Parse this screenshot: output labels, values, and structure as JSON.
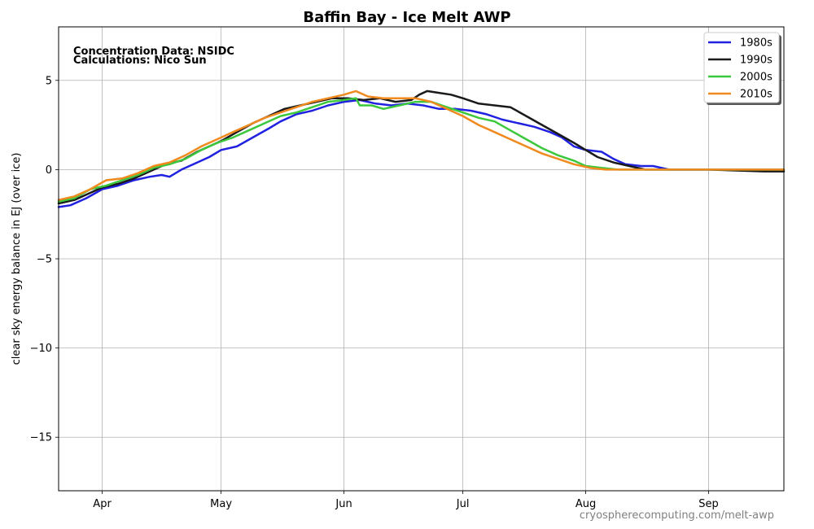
{
  "chart_data": {
    "type": "line",
    "title": "Baffin Bay - Ice Melt AWP",
    "xlabel": "",
    "ylabel": "clear sky energy balance in EJ (over ice)",
    "xlim": [
      "Mar 21",
      "Sep 20"
    ],
    "ylim": [
      -18,
      8
    ],
    "x_ticks": [
      {
        "label": "Apr",
        "date": "Apr 1"
      },
      {
        "label": "May",
        "date": "May 1"
      },
      {
        "label": "Jun",
        "date": "Jun 1"
      },
      {
        "label": "Jul",
        "date": "Jul 1"
      },
      {
        "label": "Aug",
        "date": "Aug 1"
      },
      {
        "label": "Sep",
        "date": "Sep 1"
      }
    ],
    "y_ticks": [
      5,
      0,
      -5,
      -10,
      -15
    ],
    "y_tick_labels": [
      "5",
      "0",
      "−5",
      "−10",
      "−15"
    ],
    "grid": true,
    "legend_position": "top-right",
    "annotations": [
      "Concentration Data: NSIDC",
      "Calculations: Nico Sun"
    ],
    "footer": "cryospherecomputing.com/melt-awp",
    "series": [
      {
        "name": "1980s",
        "color": "#2121e0",
        "points": [
          [
            "Mar 21",
            -2.1
          ],
          [
            "Mar 24",
            -2.0
          ],
          [
            "Mar 28",
            -1.6
          ],
          [
            "Apr 1",
            -1.1
          ],
          [
            "Apr 5",
            -0.9
          ],
          [
            "Apr 9",
            -0.6
          ],
          [
            "Apr 13",
            -0.4
          ],
          [
            "Apr 16",
            -0.3
          ],
          [
            "Apr 18",
            -0.4
          ],
          [
            "Apr 21",
            0.0
          ],
          [
            "Apr 25",
            0.4
          ],
          [
            "Apr 28",
            0.7
          ],
          [
            "May 1",
            1.1
          ],
          [
            "May 5",
            1.3
          ],
          [
            "May 9",
            1.8
          ],
          [
            "May 13",
            2.3
          ],
          [
            "May 16",
            2.7
          ],
          [
            "May 20",
            3.1
          ],
          [
            "May 24",
            3.3
          ],
          [
            "May 28",
            3.6
          ],
          [
            "Jun 1",
            3.8
          ],
          [
            "Jun 5",
            3.9
          ],
          [
            "Jun 9",
            3.7
          ],
          [
            "Jun 13",
            3.6
          ],
          [
            "Jun 17",
            3.7
          ],
          [
            "Jun 21",
            3.6
          ],
          [
            "Jun 25",
            3.4
          ],
          [
            "Jun 29",
            3.4
          ],
          [
            "Jul 3",
            3.3
          ],
          [
            "Jul 7",
            3.1
          ],
          [
            "Jul 11",
            2.8
          ],
          [
            "Jul 15",
            2.6
          ],
          [
            "Jul 19",
            2.4
          ],
          [
            "Jul 23",
            2.1
          ],
          [
            "Jul 26",
            1.8
          ],
          [
            "Jul 29",
            1.3
          ],
          [
            "Aug 1",
            1.1
          ],
          [
            "Aug 5",
            1.0
          ],
          [
            "Aug 8",
            0.6
          ],
          [
            "Aug 11",
            0.3
          ],
          [
            "Aug 15",
            0.2
          ],
          [
            "Aug 18",
            0.2
          ],
          [
            "Aug 22",
            0.0
          ],
          [
            "Aug 26",
            0.0
          ],
          [
            "Sep 1",
            0.0
          ],
          [
            "Sep 10",
            0.0
          ],
          [
            "Sep 20",
            0.0
          ]
        ]
      },
      {
        "name": "1990s",
        "color": "#1a1a1a",
        "points": [
          [
            "Mar 21",
            -1.9
          ],
          [
            "Mar 25",
            -1.7
          ],
          [
            "Mar 28",
            -1.4
          ],
          [
            "Apr 1",
            -1.0
          ],
          [
            "Apr 5",
            -0.8
          ],
          [
            "Apr 9",
            -0.5
          ],
          [
            "Apr 13",
            -0.1
          ],
          [
            "Apr 17",
            0.3
          ],
          [
            "Apr 21",
            0.5
          ],
          [
            "Apr 25",
            1.0
          ],
          [
            "Apr 28",
            1.3
          ],
          [
            "May 1",
            1.6
          ],
          [
            "May 5",
            2.1
          ],
          [
            "May 9",
            2.6
          ],
          [
            "May 13",
            3.0
          ],
          [
            "May 17",
            3.4
          ],
          [
            "May 21",
            3.6
          ],
          [
            "May 25",
            3.8
          ],
          [
            "May 29",
            4.0
          ],
          [
            "Jun 2",
            4.0
          ],
          [
            "Jun 6",
            3.9
          ],
          [
            "Jun 10",
            4.0
          ],
          [
            "Jun 14",
            3.8
          ],
          [
            "Jun 18",
            3.9
          ],
          [
            "Jun 20",
            4.2
          ],
          [
            "Jun 22",
            4.4
          ],
          [
            "Jun 25",
            4.3
          ],
          [
            "Jun 28",
            4.2
          ],
          [
            "Jul 1",
            4.0
          ],
          [
            "Jul 5",
            3.7
          ],
          [
            "Jul 9",
            3.6
          ],
          [
            "Jul 13",
            3.5
          ],
          [
            "Jul 17",
            3.0
          ],
          [
            "Jul 21",
            2.5
          ],
          [
            "Jul 25",
            2.0
          ],
          [
            "Jul 29",
            1.5
          ],
          [
            "Aug 1",
            1.1
          ],
          [
            "Aug 4",
            0.7
          ],
          [
            "Aug 8",
            0.4
          ],
          [
            "Aug 12",
            0.2
          ],
          [
            "Aug 16",
            0.0
          ],
          [
            "Sep 1",
            0.0
          ],
          [
            "Sep 15",
            -0.1
          ],
          [
            "Sep 20",
            -0.1
          ]
        ]
      },
      {
        "name": "2000s",
        "color": "#3cc83c",
        "points": [
          [
            "Mar 21",
            -1.8
          ],
          [
            "Mar 25",
            -1.6
          ],
          [
            "Mar 29",
            -1.1
          ],
          [
            "Apr 2",
            -0.9
          ],
          [
            "Apr 6",
            -0.6
          ],
          [
            "Apr 10",
            -0.3
          ],
          [
            "Apr 14",
            0.1
          ],
          [
            "Apr 18",
            0.3
          ],
          [
            "Apr 22",
            0.6
          ],
          [
            "Apr 26",
            1.1
          ],
          [
            "Apr 30",
            1.5
          ],
          [
            "May 4",
            1.8
          ],
          [
            "May 8",
            2.2
          ],
          [
            "May 12",
            2.6
          ],
          [
            "May 16",
            3.0
          ],
          [
            "May 20",
            3.2
          ],
          [
            "May 24",
            3.5
          ],
          [
            "May 28",
            3.8
          ],
          [
            "Jun 1",
            3.9
          ],
          [
            "Jun 4",
            4.0
          ],
          [
            "Jun 5",
            3.6
          ],
          [
            "Jun 8",
            3.6
          ],
          [
            "Jun 11",
            3.4
          ],
          [
            "Jun 15",
            3.6
          ],
          [
            "Jun 19",
            3.8
          ],
          [
            "Jun 23",
            3.8
          ],
          [
            "Jun 27",
            3.5
          ],
          [
            "Jul 1",
            3.2
          ],
          [
            "Jul 5",
            2.9
          ],
          [
            "Jul 9",
            2.7
          ],
          [
            "Jul 13",
            2.2
          ],
          [
            "Jul 17",
            1.7
          ],
          [
            "Jul 21",
            1.2
          ],
          [
            "Jul 25",
            0.8
          ],
          [
            "Jul 29",
            0.5
          ],
          [
            "Aug 1",
            0.2
          ],
          [
            "Aug 5",
            0.1
          ],
          [
            "Aug 9",
            0.0
          ],
          [
            "Sep 1",
            0.0
          ],
          [
            "Sep 20",
            0.0
          ]
        ]
      },
      {
        "name": "2010s",
        "color": "#f08a1e",
        "points": [
          [
            "Mar 21",
            -1.7
          ],
          [
            "Mar 25",
            -1.5
          ],
          [
            "Mar 29",
            -1.1
          ],
          [
            "Apr 2",
            -0.6
          ],
          [
            "Apr 6",
            -0.5
          ],
          [
            "Apr 10",
            -0.2
          ],
          [
            "Apr 14",
            0.2
          ],
          [
            "Apr 18",
            0.4
          ],
          [
            "Apr 22",
            0.8
          ],
          [
            "Apr 26",
            1.3
          ],
          [
            "Apr 30",
            1.7
          ],
          [
            "May 4",
            2.1
          ],
          [
            "May 8",
            2.5
          ],
          [
            "May 12",
            2.9
          ],
          [
            "May 16",
            3.2
          ],
          [
            "May 20",
            3.5
          ],
          [
            "May 24",
            3.8
          ],
          [
            "May 28",
            4.0
          ],
          [
            "Jun 1",
            4.2
          ],
          [
            "Jun 4",
            4.4
          ],
          [
            "Jun 7",
            4.1
          ],
          [
            "Jun 11",
            4.0
          ],
          [
            "Jun 15",
            4.0
          ],
          [
            "Jun 19",
            4.0
          ],
          [
            "Jun 23",
            3.8
          ],
          [
            "Jun 27",
            3.4
          ],
          [
            "Jul 1",
            3.0
          ],
          [
            "Jul 5",
            2.5
          ],
          [
            "Jul 9",
            2.1
          ],
          [
            "Jul 13",
            1.7
          ],
          [
            "Jul 17",
            1.3
          ],
          [
            "Jul 21",
            0.9
          ],
          [
            "Jul 25",
            0.6
          ],
          [
            "Jul 29",
            0.3
          ],
          [
            "Aug 2",
            0.1
          ],
          [
            "Aug 6",
            0.0
          ],
          [
            "Sep 1",
            0.0
          ],
          [
            "Sep 20",
            0.0
          ]
        ]
      }
    ]
  }
}
